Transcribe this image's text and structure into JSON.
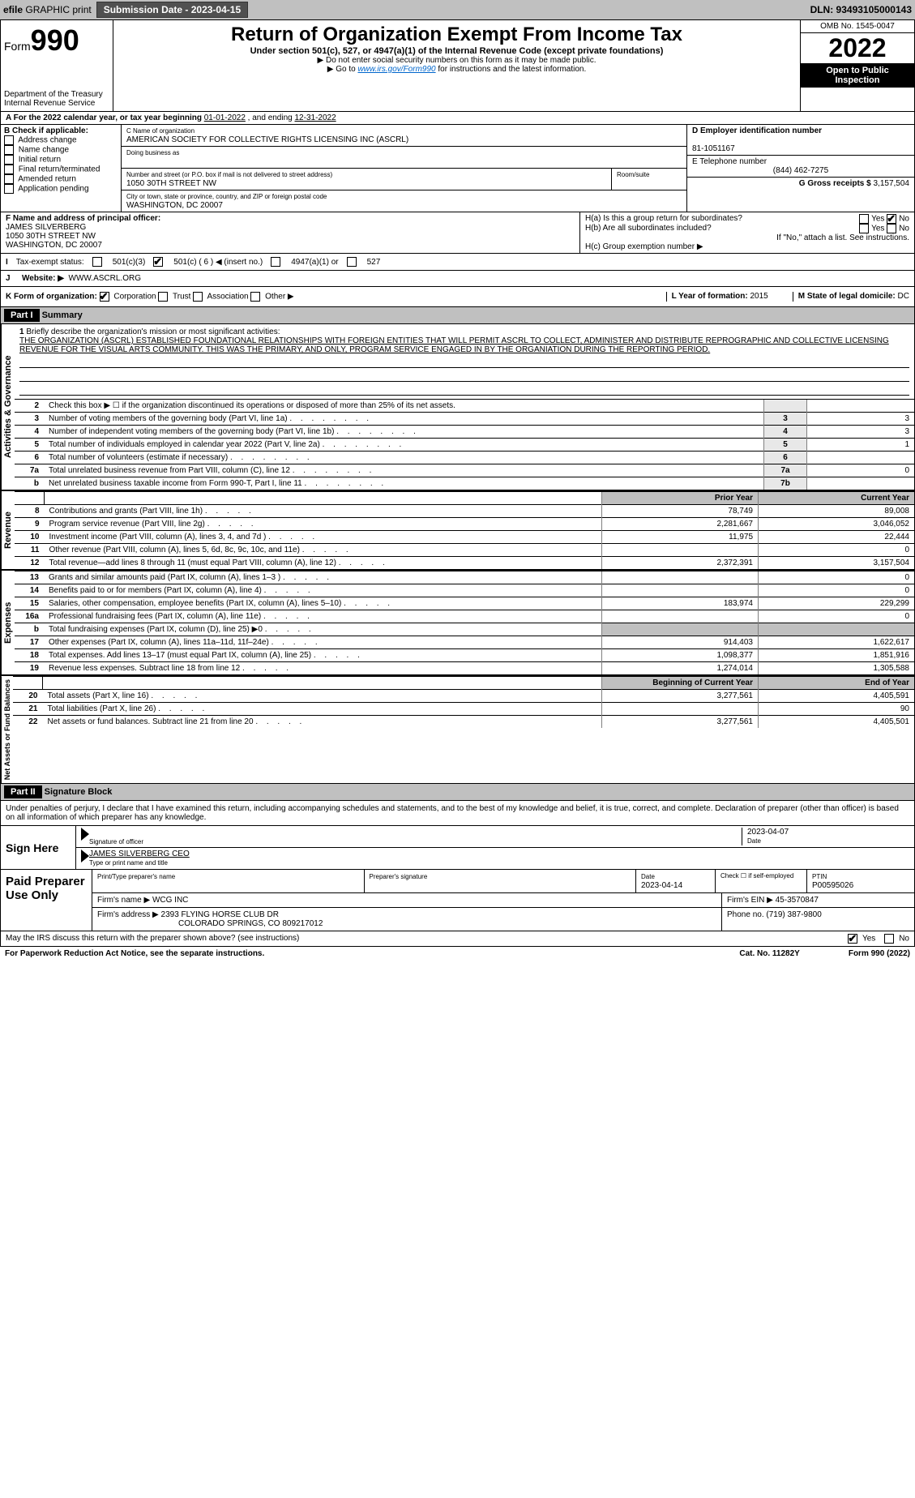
{
  "topbar": {
    "efile_prefix": "efile",
    "efile_suffix": "GRAPHIC print",
    "submission_label": "Submission Date - 2023-04-15",
    "dln": "DLN: 93493105000143"
  },
  "header": {
    "form_word": "Form",
    "form_num": "990",
    "dept": "Department of the Treasury",
    "irs": "Internal Revenue Service",
    "title": "Return of Organization Exempt From Income Tax",
    "sub": "Under section 501(c), 527, or 4947(a)(1) of the Internal Revenue Code (except private foundations)",
    "note1": "▶ Do not enter social security numbers on this form as it may be made public.",
    "note2_pre": "▶ Go to ",
    "note2_link": "www.irs.gov/Form990",
    "note2_post": " for instructions and the latest information.",
    "omb": "OMB No. 1545-0047",
    "year": "2022",
    "open": "Open to Public Inspection"
  },
  "line_a": {
    "text_pre": "A For the 2022 calendar year, or tax year beginning ",
    "begin": "01-01-2022",
    "mid": " , and ending ",
    "end": "12-31-2022"
  },
  "box_b": {
    "label": "B Check if applicable:",
    "items": [
      "Address change",
      "Name change",
      "Initial return",
      "Final return/terminated",
      "Amended return",
      "Application pending"
    ]
  },
  "box_c": {
    "name_label": "C Name of organization",
    "name": "AMERICAN SOCIETY FOR COLLECTIVE RIGHTS LICENSING INC (ASCRL)",
    "dba_label": "Doing business as",
    "street_label": "Number and street (or P.O. box if mail is not delivered to street address)",
    "street": "1050 30TH STREET NW",
    "room_label": "Room/suite",
    "city_label": "City or town, state or province, country, and ZIP or foreign postal code",
    "city": "WASHINGTON, DC  20007"
  },
  "box_d": {
    "label": "D Employer identification number",
    "value": "81-1051167"
  },
  "box_e": {
    "label": "E Telephone number",
    "value": "(844) 462-7275"
  },
  "box_g": {
    "label": "G Gross receipts $",
    "value": "3,157,504"
  },
  "box_f": {
    "label": "F Name and address of principal officer:",
    "name": "JAMES SILVERBERG",
    "addr1": "1050 30TH STREET NW",
    "addr2": "WASHINGTON, DC  20007"
  },
  "box_h": {
    "ha": "H(a)  Is this a group return for subordinates?",
    "hb": "H(b)  Are all subordinates included?",
    "hb_note": "If \"No,\" attach a list. See instructions.",
    "hc": "H(c)  Group exemption number ▶",
    "yes": "Yes",
    "no": "No"
  },
  "tax_status": {
    "label_i": "I",
    "label": "Tax-exempt status:",
    "c3": "501(c)(3)",
    "c_insert": "501(c) ( 6 ) ◀ (insert no.)",
    "a1": "4947(a)(1) or",
    "527": "527"
  },
  "box_j": {
    "letter": "J",
    "label": "Website: ▶",
    "value": "WWW.ASCRL.ORG"
  },
  "box_k": {
    "label": "K Form of organization:",
    "corp": "Corporation",
    "trust": "Trust",
    "assoc": "Association",
    "other": "Other ▶"
  },
  "box_l": {
    "label": "L Year of formation:",
    "value": "2015"
  },
  "box_m": {
    "label": "M State of legal domicile:",
    "value": "DC"
  },
  "part1": {
    "tag": "Part I",
    "title": "Summary"
  },
  "mission": {
    "num": "1",
    "label": "Briefly describe the organization's mission or most significant activities:",
    "text": "THE ORGANIZATION (ASCRL) ESTABLISHED FOUNDATIONAL RELATIONSHIPS WITH FOREIGN ENTITIES THAT WILL PERMIT ASCRL TO COLLECT, ADMINISTER AND DISTRIBUTE REPROGRAPHIC AND COLLECTIVE LICENSING REVENUE FOR THE VISUAL ARTS COMMUNITY. THIS WAS THE PRIMARY, AND ONLY, PROGRAM SERVICE ENGAGED IN BY THE ORGANIATION DURING THE REPORTING PERIOD."
  },
  "gov_lines": [
    {
      "n": "2",
      "d": "Check this box ▶ ☐ if the organization discontinued its operations or disposed of more than 25% of its net assets.",
      "box": "",
      "v": ""
    },
    {
      "n": "3",
      "d": "Number of voting members of the governing body (Part VI, line 1a)",
      "box": "3",
      "v": "3"
    },
    {
      "n": "4",
      "d": "Number of independent voting members of the governing body (Part VI, line 1b)",
      "box": "4",
      "v": "3"
    },
    {
      "n": "5",
      "d": "Total number of individuals employed in calendar year 2022 (Part V, line 2a)",
      "box": "5",
      "v": "1"
    },
    {
      "n": "6",
      "d": "Total number of volunteers (estimate if necessary)",
      "box": "6",
      "v": ""
    },
    {
      "n": "7a",
      "d": "Total unrelated business revenue from Part VIII, column (C), line 12",
      "box": "7a",
      "v": "0"
    },
    {
      "n": "b",
      "d": "Net unrelated business taxable income from Form 990-T, Part I, line 11",
      "box": "7b",
      "v": ""
    }
  ],
  "year_cols": {
    "prior": "Prior Year",
    "current": "Current Year"
  },
  "revenue_lines": [
    {
      "n": "8",
      "d": "Contributions and grants (Part VIII, line 1h)",
      "p": "78,749",
      "c": "89,008"
    },
    {
      "n": "9",
      "d": "Program service revenue (Part VIII, line 2g)",
      "p": "2,281,667",
      "c": "3,046,052"
    },
    {
      "n": "10",
      "d": "Investment income (Part VIII, column (A), lines 3, 4, and 7d )",
      "p": "11,975",
      "c": "22,444"
    },
    {
      "n": "11",
      "d": "Other revenue (Part VIII, column (A), lines 5, 6d, 8c, 9c, 10c, and 11e)",
      "p": "",
      "c": "0"
    },
    {
      "n": "12",
      "d": "Total revenue—add lines 8 through 11 (must equal Part VIII, column (A), line 12)",
      "p": "2,372,391",
      "c": "3,157,504"
    }
  ],
  "expense_lines": [
    {
      "n": "13",
      "d": "Grants and similar amounts paid (Part IX, column (A), lines 1–3 )",
      "p": "",
      "c": "0"
    },
    {
      "n": "14",
      "d": "Benefits paid to or for members (Part IX, column (A), line 4)",
      "p": "",
      "c": "0"
    },
    {
      "n": "15",
      "d": "Salaries, other compensation, employee benefits (Part IX, column (A), lines 5–10)",
      "p": "183,974",
      "c": "229,299"
    },
    {
      "n": "16a",
      "d": "Professional fundraising fees (Part IX, column (A), line 11e)",
      "p": "",
      "c": "0"
    },
    {
      "n": "b",
      "d": "Total fundraising expenses (Part IX, column (D), line 25) ▶0",
      "p": "shade",
      "c": "shade"
    },
    {
      "n": "17",
      "d": "Other expenses (Part IX, column (A), lines 11a–11d, 11f–24e)",
      "p": "914,403",
      "c": "1,622,617"
    },
    {
      "n": "18",
      "d": "Total expenses. Add lines 13–17 (must equal Part IX, column (A), line 25)",
      "p": "1,098,377",
      "c": "1,851,916"
    },
    {
      "n": "19",
      "d": "Revenue less expenses. Subtract line 18 from line 12",
      "p": "1,274,014",
      "c": "1,305,588"
    }
  ],
  "net_cols": {
    "begin": "Beginning of Current Year",
    "end": "End of Year"
  },
  "net_lines": [
    {
      "n": "20",
      "d": "Total assets (Part X, line 16)",
      "p": "3,277,561",
      "c": "4,405,591"
    },
    {
      "n": "21",
      "d": "Total liabilities (Part X, line 26)",
      "p": "",
      "c": "90"
    },
    {
      "n": "22",
      "d": "Net assets or fund balances. Subtract line 21 from line 20",
      "p": "3,277,561",
      "c": "4,405,501"
    }
  ],
  "labels": {
    "gov": "Activities & Governance",
    "rev": "Revenue",
    "exp": "Expenses",
    "net": "Net Assets or Fund Balances"
  },
  "part2": {
    "tag": "Part II",
    "title": "Signature Block",
    "intro": "Under penalties of perjury, I declare that I have examined this return, including accompanying schedules and statements, and to the best of my knowledge and belief, it is true, correct, and complete. Declaration of preparer (other than officer) is based on all information of which preparer has any knowledge."
  },
  "sign": {
    "label": "Sign Here",
    "sig_of_officer": "Signature of officer",
    "date_label": "Date",
    "date": "2023-04-07",
    "name": "JAMES SILVERBERG CEO",
    "type_name": "Type or print name and title"
  },
  "paid": {
    "label": "Paid Preparer Use Only",
    "print_name": "Print/Type preparer's name",
    "prep_sig": "Preparer's signature",
    "date_label": "Date",
    "date": "2023-04-14",
    "check_label": "Check ☐ if self-employed",
    "ptin_label": "PTIN",
    "ptin": "P00595026",
    "firm_name_label": "Firm's name    ▶",
    "firm_name": "WCG INC",
    "firm_ein_label": "Firm's EIN ▶",
    "firm_ein": "45-3570847",
    "firm_addr_label": "Firm's address ▶",
    "firm_addr1": "2393 FLYING HORSE CLUB DR",
    "firm_addr2": "COLORADO SPRINGS, CO  809217012",
    "phone_label": "Phone no.",
    "phone": "(719) 387-9800"
  },
  "footer": {
    "discuss": "May the IRS discuss this return with the preparer shown above? (see instructions)",
    "yes": "Yes",
    "no": "No",
    "paperwork": "For Paperwork Reduction Act Notice, see the separate instructions.",
    "cat": "Cat. No. 11282Y",
    "form": "Form 990 (2022)"
  }
}
